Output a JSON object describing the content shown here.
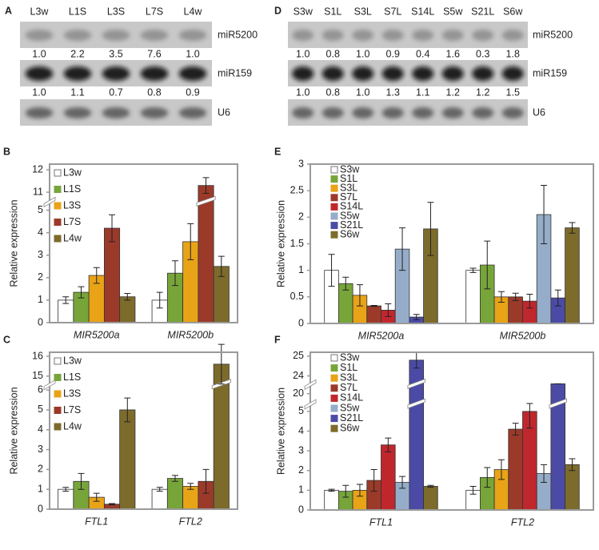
{
  "blots": [
    {
      "label": "A",
      "lanes": [
        "L3w",
        "L1S",
        "L3S",
        "L7S",
        "L4w"
      ],
      "rows": [
        {
          "name": "miR5200",
          "quant": [
            "1.0",
            "2.2",
            "3.5",
            "7.6",
            "1.0"
          ]
        },
        {
          "name": "miR159",
          "quant": [
            "1.0",
            "1.1",
            "0.7",
            "0.8",
            "0.9"
          ]
        },
        {
          "name": "U6"
        }
      ]
    },
    {
      "label": "D",
      "lanes": [
        "S3w",
        "S1L",
        "S3L",
        "S7L",
        "S14L",
        "S5w",
        "S21L",
        "S6w"
      ],
      "rows": [
        {
          "name": "miR5200",
          "quant": [
            "1.0",
            "0.8",
            "1.0",
            "0.9",
            "0.4",
            "1.6",
            "0.3",
            "1.8"
          ]
        },
        {
          "name": "miR159",
          "quant": [
            "1.0",
            "0.8",
            "1.0",
            "1.3",
            "1.1",
            "1.2",
            "1.2",
            "1.5"
          ]
        },
        {
          "name": "U6"
        }
      ]
    }
  ],
  "chart_data": [
    {
      "type": "bar",
      "label": "B",
      "ylabel": "Relative expression",
      "legend": "upper left",
      "categories": [
        "MIR5200a",
        "MIR5200b"
      ],
      "ylim": [
        0,
        12.25
      ],
      "ybreaks": [
        [
          5.4,
          10.6
        ]
      ],
      "yticks": [
        0,
        1,
        2,
        3,
        4,
        5,
        11,
        12
      ],
      "series": [
        {
          "name": "L3w",
          "color": "#ffffff",
          "values": [
            1.0,
            1.0
          ],
          "errors": [
            0.15,
            0.35
          ]
        },
        {
          "name": "L1S",
          "color": "#77a53a",
          "values": [
            1.35,
            2.2
          ],
          "errors": [
            0.25,
            0.55
          ]
        },
        {
          "name": "L3S",
          "color": "#e8a317",
          "values": [
            2.1,
            3.6
          ],
          "errors": [
            0.35,
            0.8
          ]
        },
        {
          "name": "L7S",
          "color": "#9c3a2a",
          "values": [
            4.2,
            11.3
          ],
          "errors": [
            0.6,
            0.35
          ]
        },
        {
          "name": "L4w",
          "color": "#7d6b2b",
          "values": [
            1.15,
            2.5
          ],
          "errors": [
            0.15,
            0.45
          ]
        }
      ]
    },
    {
      "type": "bar",
      "label": "C",
      "ylabel": "Relative expression",
      "legend": "upper left",
      "categories": [
        "FTL1",
        "FTL2"
      ],
      "ylim": [
        0,
        16.2
      ],
      "ybreaks": [
        [
          6.3,
          14.6
        ]
      ],
      "yticks": [
        0,
        1,
        2,
        3,
        4,
        5,
        6,
        15,
        16
      ],
      "series": [
        {
          "name": "L3w",
          "color": "#ffffff",
          "values": [
            1.0,
            1.0
          ],
          "errors": [
            0.1,
            0.1
          ]
        },
        {
          "name": "L1S",
          "color": "#77a53a",
          "values": [
            1.4,
            1.55
          ],
          "errors": [
            0.4,
            0.15
          ]
        },
        {
          "name": "L3S",
          "color": "#e8a317",
          "values": [
            0.6,
            1.15
          ],
          "errors": [
            0.2,
            0.15
          ]
        },
        {
          "name": "L7S",
          "color": "#9c3a2a",
          "values": [
            0.25,
            1.4
          ],
          "errors": [
            0.03,
            0.6
          ]
        },
        {
          "name": "L4w",
          "color": "#7d6b2b",
          "values": [
            5.0,
            15.6
          ],
          "errors": [
            0.6,
            1.0
          ]
        }
      ]
    },
    {
      "type": "bar",
      "label": "E",
      "ylabel": "Relative expression",
      "legend": "upper left",
      "categories": [
        "MIR5200a",
        "MIR5200b"
      ],
      "ylim": [
        0,
        3
      ],
      "ybreaks": [],
      "yticks": [
        0,
        0.5,
        1,
        1.5,
        2,
        2.5,
        3
      ],
      "series": [
        {
          "name": "S3w",
          "color": "#ffffff",
          "values": [
            1.0,
            1.0
          ],
          "errors": [
            0.3,
            0.04
          ]
        },
        {
          "name": "S1L",
          "color": "#77a53a",
          "values": [
            0.75,
            1.1
          ],
          "errors": [
            0.12,
            0.45
          ]
        },
        {
          "name": "S3L",
          "color": "#e8a317",
          "values": [
            0.53,
            0.5
          ],
          "errors": [
            0.2,
            0.1
          ]
        },
        {
          "name": "S7L",
          "color": "#9c3a2a",
          "values": [
            0.33,
            0.5
          ],
          "errors": [
            0.01,
            0.07
          ]
        },
        {
          "name": "S14L",
          "color": "#c0272d",
          "values": [
            0.25,
            0.42
          ],
          "errors": [
            0.12,
            0.13
          ]
        },
        {
          "name": "S5w",
          "color": "#95adc9",
          "values": [
            1.4,
            2.05
          ],
          "errors": [
            0.4,
            0.55
          ]
        },
        {
          "name": "S21L",
          "color": "#4b4ba6",
          "values": [
            0.12,
            0.48
          ],
          "errors": [
            0.05,
            0.15
          ]
        },
        {
          "name": "S6w",
          "color": "#7d6b2b",
          "values": [
            1.78,
            1.8
          ],
          "errors": [
            0.5,
            0.1
          ]
        }
      ]
    },
    {
      "type": "bar",
      "label": "F",
      "ylabel": "Relative expression",
      "legend": "upper left",
      "categories": [
        "FTL1",
        "FTL2"
      ],
      "ylim": [
        0,
        25.2
      ],
      "ybreaks": [
        [
          5.4,
          19.5
        ],
        [
          20.5,
          23.6
        ]
      ],
      "yticks": [
        0,
        1,
        2,
        3,
        4,
        5,
        20,
        24,
        25
      ],
      "series": [
        {
          "name": "S3w",
          "color": "#ffffff",
          "values": [
            1.0,
            1.0
          ],
          "errors": [
            0.05,
            0.2
          ]
        },
        {
          "name": "S1L",
          "color": "#77a53a",
          "values": [
            0.95,
            1.65
          ],
          "errors": [
            0.3,
            0.5
          ]
        },
        {
          "name": "S3L",
          "color": "#e8a317",
          "values": [
            1.0,
            2.05
          ],
          "errors": [
            0.3,
            0.5
          ]
        },
        {
          "name": "S7L",
          "color": "#9c3a2a",
          "values": [
            1.5,
            4.1
          ],
          "errors": [
            0.55,
            0.3
          ]
        },
        {
          "name": "S14L",
          "color": "#c0272d",
          "values": [
            3.3,
            5.0
          ],
          "errors": [
            0.35,
            0.85
          ]
        },
        {
          "name": "S5w",
          "color": "#95adc9",
          "values": [
            1.4,
            1.85
          ],
          "errors": [
            0.3,
            0.45
          ]
        },
        {
          "name": "S21L",
          "color": "#4b4ba6",
          "values": [
            24.8,
            21.2
          ],
          "errors": [
            0.4,
            0.7
          ]
        },
        {
          "name": "S6w",
          "color": "#7d6b2b",
          "values": [
            1.2,
            2.3
          ],
          "errors": [
            0.05,
            0.3
          ]
        }
      ]
    }
  ]
}
